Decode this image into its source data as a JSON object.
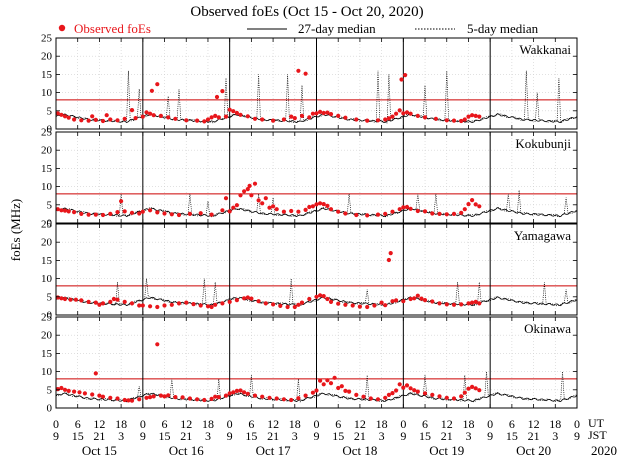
{
  "chart_data": {
    "type": "scatter",
    "title": "Observed foEs (Oct 15 - Oct 20, 2020)",
    "legend": {
      "observed": "Observed foEs",
      "median27": "27-day median",
      "median5": "5-day median"
    },
    "ylabel": "foEs (MHz)",
    "ylim": [
      0,
      25
    ],
    "yticks": [
      0,
      5,
      10,
      15,
      20,
      25
    ],
    "xlim_hours_ut": [
      0,
      144
    ],
    "x_ticks": {
      "ut_labels": [
        "0",
        "6",
        "12",
        "18",
        "0",
        "6",
        "12",
        "18",
        "0",
        "6",
        "12",
        "18",
        "0",
        "6",
        "12",
        "18",
        "0",
        "6",
        "12",
        "18",
        "0",
        "6",
        "12",
        "18",
        "0"
      ],
      "jst_labels": [
        "9",
        "15",
        "21",
        "3",
        "9",
        "15",
        "21",
        "3",
        "9",
        "15",
        "21",
        "3",
        "9",
        "15",
        "21",
        "3",
        "9",
        "15",
        "21",
        "3",
        "9",
        "15",
        "21",
        "3",
        "9"
      ],
      "ut_label": "UT",
      "jst_label": "JST"
    },
    "dates": [
      "Oct 15",
      "Oct 16",
      "Oct 17",
      "Oct 18",
      "Oct 19",
      "Oct 20"
    ],
    "year": "2020",
    "threshold_lines": {
      "wakkanai": 8,
      "kokubunji": 8,
      "yamagawa": 8,
      "okinawa": 8
    },
    "colors": {
      "observed": "#e8161b",
      "threshold": "#cc0000",
      "frame": "#000000",
      "grid": "#cfcfcf"
    },
    "stations": [
      {
        "name": "Wakkanai",
        "points": [
          [
            0.5,
            4.3
          ],
          [
            1.5,
            3.9
          ],
          [
            2.5,
            3.5
          ],
          [
            3.5,
            3.1
          ],
          [
            5,
            2.6
          ],
          [
            7,
            2.4
          ],
          [
            9,
            2.3
          ],
          [
            10,
            3.5
          ],
          [
            11,
            2.5
          ],
          [
            13,
            2.2
          ],
          [
            14,
            3.8
          ],
          [
            15,
            2.6
          ],
          [
            17,
            2.4
          ],
          [
            19,
            2.8
          ],
          [
            21,
            5.2
          ],
          [
            22,
            3
          ],
          [
            24,
            3.4
          ],
          [
            25,
            4.6
          ],
          [
            26,
            4.2
          ],
          [
            26.5,
            10.5
          ],
          [
            27,
            3.8
          ],
          [
            28,
            12.3
          ],
          [
            29,
            3.6
          ],
          [
            31,
            3.2
          ],
          [
            33,
            2.8
          ],
          [
            36,
            2.4
          ],
          [
            39,
            2.3
          ],
          [
            41,
            2.1
          ],
          [
            42,
            2.6
          ],
          [
            43,
            3.2
          ],
          [
            44,
            3.6
          ],
          [
            44.5,
            8.8
          ],
          [
            45,
            3.2
          ],
          [
            46,
            10.4
          ],
          [
            47,
            3.4
          ],
          [
            48,
            5.3
          ],
          [
            49,
            4.9
          ],
          [
            50,
            4.4
          ],
          [
            51,
            3.9
          ],
          [
            53,
            3.5
          ],
          [
            55,
            2.8
          ],
          [
            57,
            2.6
          ],
          [
            60,
            2.3
          ],
          [
            63,
            2.6
          ],
          [
            65,
            3.4
          ],
          [
            66,
            3
          ],
          [
            67,
            16
          ],
          [
            68,
            3.6
          ],
          [
            69,
            15.2
          ],
          [
            70,
            3.2
          ],
          [
            71,
            4.2
          ],
          [
            72,
            4.3
          ],
          [
            73,
            4.7
          ],
          [
            74,
            4.4
          ],
          [
            75,
            4.5
          ],
          [
            76,
            4.1
          ],
          [
            78,
            3.6
          ],
          [
            80,
            3.1
          ],
          [
            83,
            2.6
          ],
          [
            86,
            2.3
          ],
          [
            89,
            2.4
          ],
          [
            91,
            2.6
          ],
          [
            92,
            2.9
          ],
          [
            93,
            3.4
          ],
          [
            94,
            4.2
          ],
          [
            95,
            5.1
          ],
          [
            95.5,
            13.6
          ],
          [
            96,
            4.3
          ],
          [
            96.5,
            14.8
          ],
          [
            97,
            4.6
          ],
          [
            98,
            4.2
          ],
          [
            100,
            3.6
          ],
          [
            102,
            3.2
          ],
          [
            105,
            2.8
          ],
          [
            108,
            2.4
          ],
          [
            110,
            2.3
          ],
          [
            112,
            2.2
          ],
          [
            113,
            2.6
          ],
          [
            114,
            3.4
          ],
          [
            115,
            3.8
          ],
          [
            116,
            3.6
          ],
          [
            117,
            3.4
          ]
        ]
      },
      {
        "name": "Kokubunji",
        "points": [
          [
            0.5,
            3.8
          ],
          [
            1.5,
            3.5
          ],
          [
            2.5,
            3.4
          ],
          [
            3.5,
            3.2
          ],
          [
            5,
            3
          ],
          [
            7,
            2.5
          ],
          [
            9,
            2.3
          ],
          [
            11,
            2.3
          ],
          [
            13,
            2.2
          ],
          [
            15,
            2.5
          ],
          [
            17,
            3
          ],
          [
            18,
            6
          ],
          [
            19,
            3.2
          ],
          [
            21,
            2.8
          ],
          [
            23,
            2.6
          ],
          [
            24,
            3.1
          ],
          [
            26,
            3.5
          ],
          [
            28,
            2.9
          ],
          [
            30,
            2.6
          ],
          [
            32,
            2.4
          ],
          [
            34,
            2.2
          ],
          [
            37,
            2.5
          ],
          [
            40,
            2.7
          ],
          [
            43,
            2.3
          ],
          [
            46,
            3.5
          ],
          [
            47,
            6.8
          ],
          [
            48,
            3.2
          ],
          [
            49,
            4.2
          ],
          [
            50,
            4.9
          ],
          [
            51,
            7.6
          ],
          [
            52,
            8.7
          ],
          [
            53,
            9.3
          ],
          [
            53.5,
            10.2
          ],
          [
            54,
            7.6
          ],
          [
            55,
            10.8
          ],
          [
            56,
            6.2
          ],
          [
            57,
            5.4
          ],
          [
            58,
            6.8
          ],
          [
            59,
            4.2
          ],
          [
            60,
            4.6
          ],
          [
            61,
            3.8
          ],
          [
            63,
            3.1
          ],
          [
            65,
            3.3
          ],
          [
            67,
            3.1
          ],
          [
            69,
            3.6
          ],
          [
            70,
            4.4
          ],
          [
            71,
            4.6
          ],
          [
            72,
            5.1
          ],
          [
            73,
            5.4
          ],
          [
            74,
            5.2
          ],
          [
            75,
            4.7
          ],
          [
            76,
            3.8
          ],
          [
            78,
            3.1
          ],
          [
            80,
            2.6
          ],
          [
            83,
            2.2
          ],
          [
            86,
            2.1
          ],
          [
            89,
            2.3
          ],
          [
            91,
            2.5
          ],
          [
            93,
            3.1
          ],
          [
            95,
            3.8
          ],
          [
            96,
            4.3
          ],
          [
            97,
            4.4
          ],
          [
            98,
            3.9
          ],
          [
            100,
            3.3
          ],
          [
            102,
            3.2
          ],
          [
            104,
            2.6
          ],
          [
            106,
            2.5
          ],
          [
            108,
            2.4
          ],
          [
            110,
            2.5
          ],
          [
            112,
            2.8
          ],
          [
            113,
            3.8
          ],
          [
            114,
            5.2
          ],
          [
            115,
            6.3
          ],
          [
            116,
            5.1
          ],
          [
            117,
            4.6
          ]
        ]
      },
      {
        "name": "Yamagawa",
        "points": [
          [
            0.5,
            4.8
          ],
          [
            1.5,
            4.6
          ],
          [
            2.5,
            4.4
          ],
          [
            4,
            4.2
          ],
          [
            5.5,
            4.2
          ],
          [
            7,
            4
          ],
          [
            9,
            3.6
          ],
          [
            11,
            3.4
          ],
          [
            12,
            2.8
          ],
          [
            13,
            3.2
          ],
          [
            15,
            3.6
          ],
          [
            16,
            4.4
          ],
          [
            17,
            4.2
          ],
          [
            19,
            3.6
          ],
          [
            21,
            3.2
          ],
          [
            23,
            2.6
          ],
          [
            24,
            2.6
          ],
          [
            26,
            2.4
          ],
          [
            28,
            2.2
          ],
          [
            30,
            2.6
          ],
          [
            32,
            2.8
          ],
          [
            34,
            3.2
          ],
          [
            36,
            3.4
          ],
          [
            38,
            3
          ],
          [
            40,
            2.6
          ],
          [
            42,
            2.4
          ],
          [
            43,
            2.2
          ],
          [
            44,
            2.8
          ],
          [
            46,
            3.2
          ],
          [
            48,
            3.6
          ],
          [
            50,
            4.1
          ],
          [
            52,
            4.6
          ],
          [
            53,
            4.8
          ],
          [
            54,
            4.5
          ],
          [
            56,
            3.8
          ],
          [
            58,
            3.2
          ],
          [
            60,
            2.9
          ],
          [
            62,
            2.5
          ],
          [
            64,
            2.2
          ],
          [
            66,
            2.2
          ],
          [
            67,
            2.8
          ],
          [
            68,
            3.4
          ],
          [
            70,
            4.4
          ],
          [
            72,
            5
          ],
          [
            73,
            5.4
          ],
          [
            74,
            5.2
          ],
          [
            75,
            4.4
          ],
          [
            76,
            3.6
          ],
          [
            78,
            3.1
          ],
          [
            80,
            2.8
          ],
          [
            82,
            2.6
          ],
          [
            84,
            2.3
          ],
          [
            86,
            2.2
          ],
          [
            88,
            2.6
          ],
          [
            90,
            3.4
          ],
          [
            91,
            2.7
          ],
          [
            92,
            15.1
          ],
          [
            92.5,
            17
          ],
          [
            93,
            3.8
          ],
          [
            94,
            4
          ],
          [
            96,
            3.8
          ],
          [
            98,
            4.4
          ],
          [
            99,
            4.6
          ],
          [
            100,
            5.3
          ],
          [
            101,
            4.5
          ],
          [
            102,
            4.1
          ],
          [
            104,
            3.7
          ],
          [
            106,
            3.2
          ],
          [
            108,
            2.9
          ],
          [
            110,
            2.8
          ],
          [
            112,
            2.9
          ],
          [
            114,
            3.2
          ],
          [
            115,
            3.4
          ],
          [
            116,
            3.6
          ],
          [
            117,
            3.2
          ]
        ]
      },
      {
        "name": "Okinawa",
        "points": [
          [
            0.5,
            5.2
          ],
          [
            1.5,
            5.5
          ],
          [
            2.5,
            5
          ],
          [
            3.5,
            4.7
          ],
          [
            5,
            4.5
          ],
          [
            6.5,
            4.3
          ],
          [
            8,
            4
          ],
          [
            10,
            3.7
          ],
          [
            11,
            9.5
          ],
          [
            12,
            3.4
          ],
          [
            13,
            3.1
          ],
          [
            15,
            2.8
          ],
          [
            17,
            2.6
          ],
          [
            19,
            2.2
          ],
          [
            20,
            2.1
          ],
          [
            21,
            2
          ],
          [
            23,
            2.4
          ],
          [
            25,
            2.8
          ],
          [
            26,
            3
          ],
          [
            27,
            3.2
          ],
          [
            28,
            17.5
          ],
          [
            29,
            3.4
          ],
          [
            30,
            3.2
          ],
          [
            31,
            3.5
          ],
          [
            33,
            3
          ],
          [
            35,
            2.9
          ],
          [
            37,
            2.6
          ],
          [
            39,
            2.4
          ],
          [
            41,
            2.2
          ],
          [
            43,
            2.5
          ],
          [
            44,
            3.1
          ],
          [
            45,
            3
          ],
          [
            47,
            3.4
          ],
          [
            48,
            4
          ],
          [
            49,
            4.3
          ],
          [
            50,
            4.7
          ],
          [
            51,
            4.8
          ],
          [
            52,
            4.3
          ],
          [
            53,
            3.9
          ],
          [
            55,
            3.4
          ],
          [
            57,
            3.1
          ],
          [
            59,
            2.8
          ],
          [
            61,
            2.6
          ],
          [
            63,
            2.4
          ],
          [
            65,
            2.2
          ],
          [
            67,
            2.7
          ],
          [
            69,
            3.4
          ],
          [
            71,
            4.2
          ],
          [
            72,
            4.8
          ],
          [
            73,
            7.5
          ],
          [
            74,
            6.5
          ],
          [
            75,
            7.6
          ],
          [
            76,
            6.8
          ],
          [
            77,
            8.3
          ],
          [
            78,
            5.5
          ],
          [
            79,
            6
          ],
          [
            80,
            4.7
          ],
          [
            81,
            4.5
          ],
          [
            83,
            3.6
          ],
          [
            85,
            3.1
          ],
          [
            87,
            2.6
          ],
          [
            89,
            2.4
          ],
          [
            91,
            2.8
          ],
          [
            92,
            3.6
          ],
          [
            93,
            4.1
          ],
          [
            94,
            4.8
          ],
          [
            95,
            6.5
          ],
          [
            96,
            5.6
          ],
          [
            97,
            6.2
          ],
          [
            98,
            5.4
          ],
          [
            99,
            4.9
          ],
          [
            100,
            4.5
          ],
          [
            102,
            4
          ],
          [
            104,
            3.6
          ],
          [
            106,
            3.2
          ],
          [
            108,
            2.8
          ],
          [
            110,
            2.6
          ],
          [
            112,
            3.2
          ],
          [
            113,
            4.2
          ],
          [
            114,
            5.3
          ],
          [
            115,
            5.8
          ],
          [
            116,
            5.4
          ],
          [
            117,
            4.9
          ]
        ]
      }
    ]
  }
}
